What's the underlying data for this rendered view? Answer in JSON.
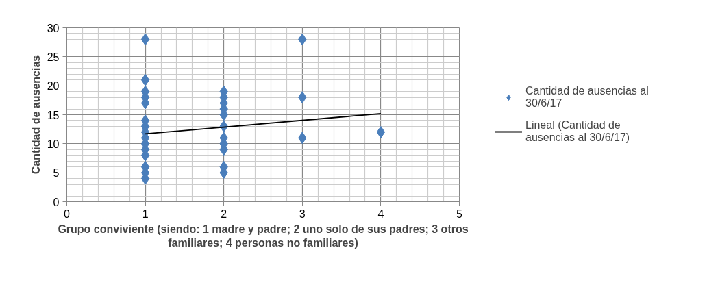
{
  "chart_data": {
    "type": "scatter",
    "xlabel": "Grupo conviviente (siendo: 1 madre y padre; 2 uno solo de sus padres; 3 otros\nfamiliares; 4 personas no familiares)",
    "ylabel": "Cantidad de ausencias",
    "xlim": [
      0,
      5
    ],
    "xticks": [
      0,
      1,
      2,
      3,
      4,
      5
    ],
    "ylim": [
      0,
      30
    ],
    "yticks": [
      0,
      5,
      10,
      15,
      20,
      25,
      30
    ],
    "grid": true,
    "legend": "right",
    "series": [
      {
        "name": "Cantidad de ausencias al 30/6/17",
        "color": "#4a7ebb",
        "marker": "diamond",
        "x": [
          1,
          1,
          1,
          1,
          1,
          1,
          1,
          1,
          1,
          1,
          1,
          1,
          1,
          1,
          1,
          2,
          2,
          2,
          2,
          2,
          2,
          2,
          2,
          2,
          2,
          2,
          3,
          3,
          3,
          4
        ],
        "values": [
          4,
          5,
          6,
          8,
          9,
          10,
          11,
          12,
          13,
          14,
          17,
          18,
          19,
          21,
          28,
          5,
          6,
          9,
          10,
          11,
          13,
          15,
          16,
          17,
          18,
          19,
          11,
          18,
          28,
          12
        ]
      },
      {
        "name": "Lineal (Cantidad de ausencias al 30/6/17)",
        "color": "#000000",
        "type": "line",
        "x": [
          1,
          4
        ],
        "values": [
          11.7,
          15.2
        ]
      }
    ]
  }
}
